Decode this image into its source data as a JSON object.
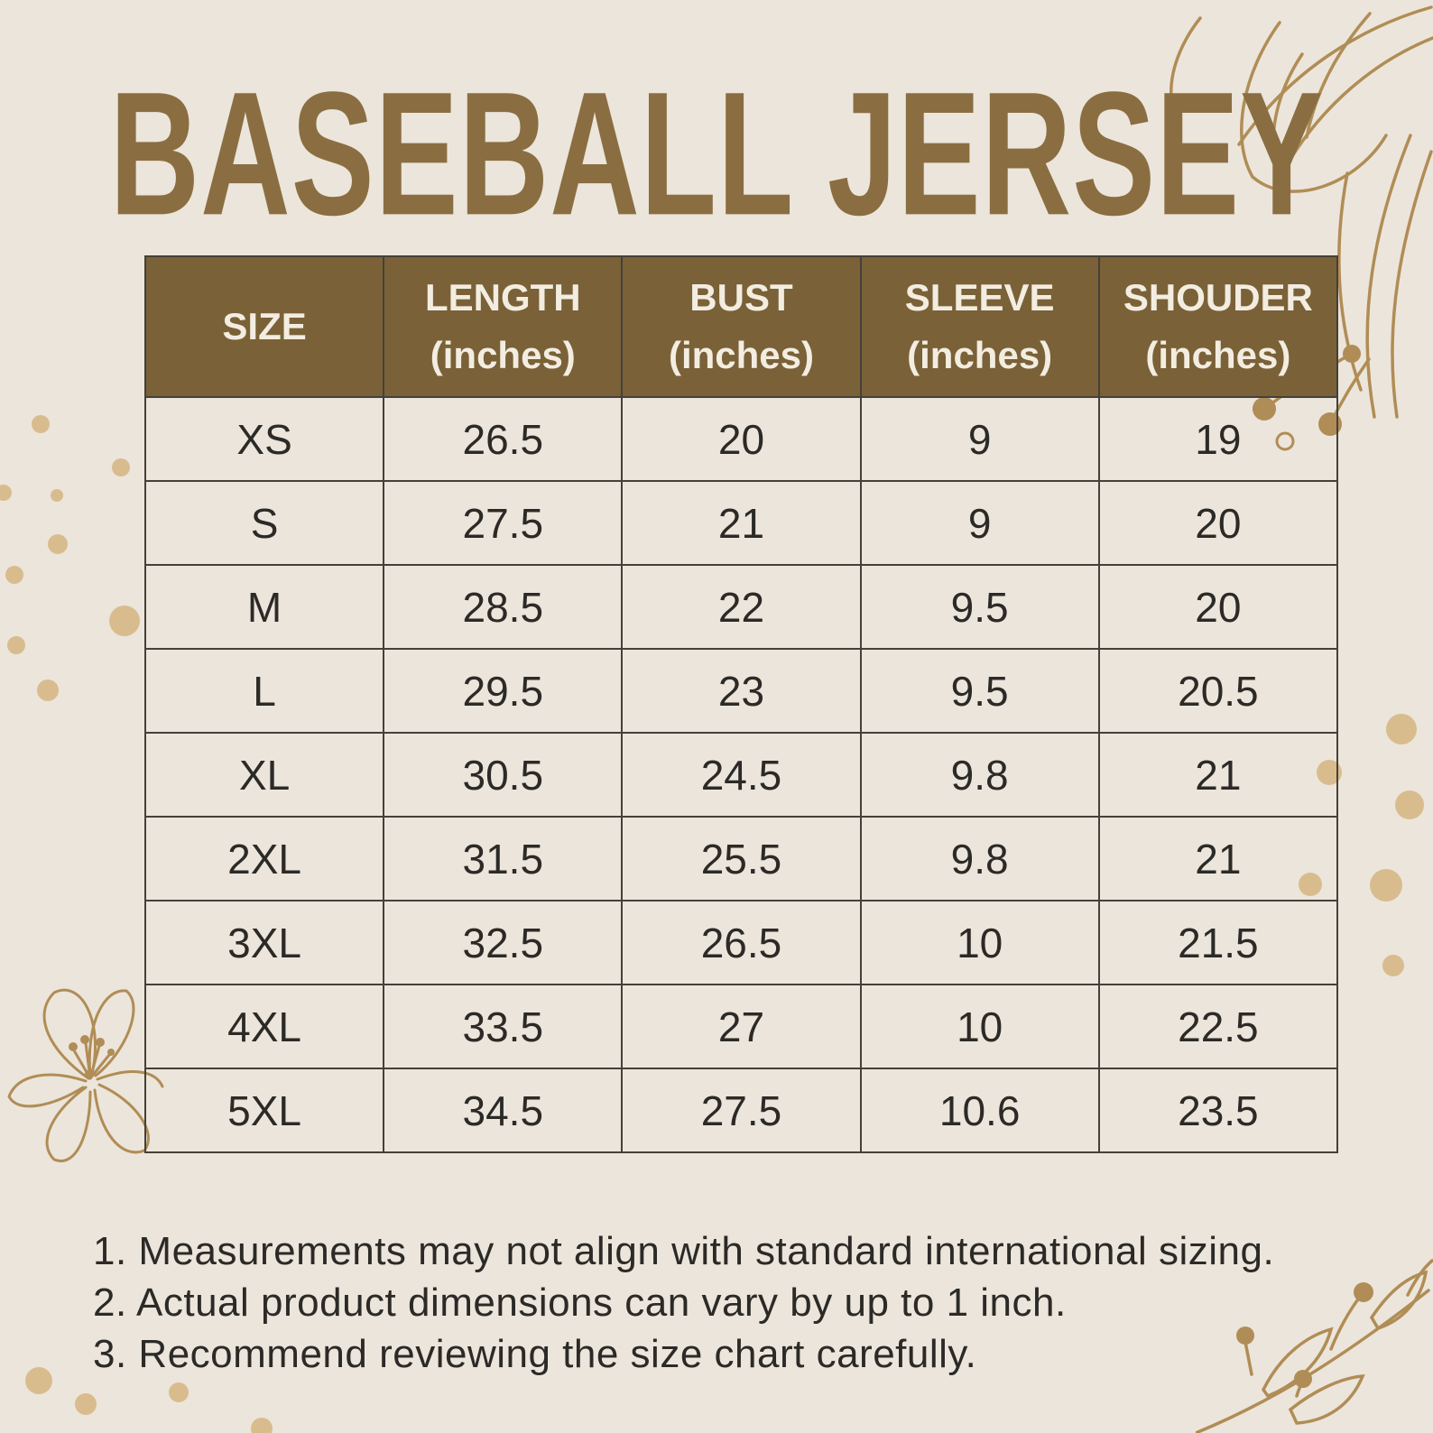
{
  "title": "BASEBALL JERSEY",
  "table": {
    "headers": [
      {
        "label": "SIZE",
        "sub": ""
      },
      {
        "label": "LENGTH",
        "sub": "(inches)"
      },
      {
        "label": "BUST",
        "sub": "(inches)"
      },
      {
        "label": "SLEEVE",
        "sub": "(inches)"
      },
      {
        "label": "SHOUDER",
        "sub": "(inches)"
      }
    ],
    "rows": [
      [
        "XS",
        "26.5",
        "20",
        "9",
        "19"
      ],
      [
        "S",
        "27.5",
        "21",
        "9",
        "20"
      ],
      [
        "M",
        "28.5",
        "22",
        "9.5",
        "20"
      ],
      [
        "L",
        "29.5",
        "23",
        "9.5",
        "20.5"
      ],
      [
        "XL",
        "30.5",
        "24.5",
        "9.8",
        "21"
      ],
      [
        "2XL",
        "31.5",
        "25.5",
        "9.8",
        "21"
      ],
      [
        "3XL",
        "32.5",
        "26.5",
        "10",
        "21.5"
      ],
      [
        "4XL",
        "33.5",
        "27",
        "10",
        "22.5"
      ],
      [
        "5XL",
        "34.5",
        "27.5",
        "10.6",
        "23.5"
      ]
    ]
  },
  "notes": [
    "1. Measurements may not align with standard international sizing.",
    "2. Actual product dimensions can vary by up to 1 inch.",
    "3. Recommend reviewing the size chart carefully."
  ],
  "colors": {
    "background": "#ece5db",
    "header_bg": "#7a6137",
    "header_text": "#f3ede1",
    "title": "#8a6e41",
    "body_text": "#2b2a27",
    "border": "#44403a",
    "ornament": "#b08d56",
    "dot": "#d9bc8e"
  },
  "chart_data": {
    "type": "table",
    "title": "BASEBALL JERSEY",
    "columns": [
      "SIZE",
      "LENGTH (inches)",
      "BUST (inches)",
      "SLEEVE (inches)",
      "SHOUDER (inches)"
    ],
    "rows": [
      [
        "XS",
        26.5,
        20,
        9,
        19
      ],
      [
        "S",
        27.5,
        21,
        9,
        20
      ],
      [
        "M",
        28.5,
        22,
        9.5,
        20
      ],
      [
        "L",
        29.5,
        23,
        9.5,
        20.5
      ],
      [
        "XL",
        30.5,
        24.5,
        9.8,
        21
      ],
      [
        "2XL",
        31.5,
        25.5,
        9.8,
        21
      ],
      [
        "3XL",
        32.5,
        26.5,
        10,
        21.5
      ],
      [
        "4XL",
        33.5,
        27,
        10,
        22.5
      ],
      [
        "5XL",
        34.5,
        27.5,
        10.6,
        23.5
      ]
    ],
    "footnotes": [
      "1. Measurements may not align with standard international sizing.",
      "2. Actual product dimensions can vary by up to 1 inch.",
      "3. Recommend reviewing the size chart carefully."
    ]
  }
}
